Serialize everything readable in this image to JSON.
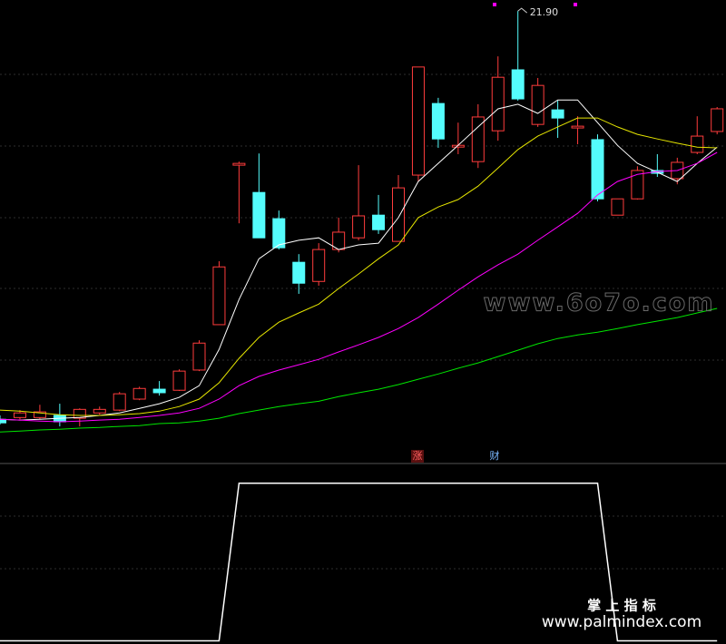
{
  "chart_data": [
    {
      "type": "candlestick",
      "ylim": [
        9.21,
        22.21
      ],
      "up_color": "#ff3c3c",
      "down_color": "#54fcfc",
      "open": [
        10.38,
        10.43,
        10.43,
        10.49,
        10.41,
        10.56,
        10.64,
        10.95,
        11.23,
        11.2,
        11.77,
        13.05,
        17.55,
        16.78,
        16.04,
        14.81,
        14.27,
        15.17,
        15.5,
        16.14,
        15.4,
        17.27,
        19.29,
        18.06,
        17.65,
        18.52,
        20.24,
        18.7,
        19.11,
        18.6,
        18.27,
        16.14,
        16.6,
        17.4,
        17.17,
        17.91,
        18.5
      ],
      "high": [
        10.49,
        10.64,
        10.79,
        10.82,
        10.69,
        10.74,
        11.15,
        11.3,
        11.46,
        11.79,
        12.61,
        14.84,
        17.65,
        17.88,
        16.27,
        15.04,
        15.35,
        16.07,
        17.55,
        16.71,
        17.27,
        20.32,
        19.45,
        18.75,
        19.27,
        20.62,
        21.9,
        20.01,
        19.37,
        18.93,
        18.42,
        16.6,
        17.52,
        17.86,
        17.76,
        18.93,
        19.19
      ],
      "low": [
        10.23,
        10.38,
        10.38,
        10.18,
        10.18,
        10.51,
        10.61,
        10.92,
        11.05,
        11.18,
        11.74,
        13.05,
        15.91,
        15.5,
        15.17,
        13.92,
        14.15,
        15.09,
        15.43,
        15.61,
        15.4,
        17.09,
        18.04,
        17.86,
        17.47,
        18.24,
        19.37,
        18.63,
        18.32,
        18.14,
        16.53,
        16.14,
        16.58,
        17.22,
        17.01,
        17.86,
        18.42
      ],
      "close": [
        10.28,
        10.56,
        10.59,
        10.31,
        10.66,
        10.66,
        11.1,
        11.25,
        11.13,
        11.74,
        12.53,
        14.68,
        17.6,
        15.5,
        15.22,
        14.22,
        15.17,
        15.66,
        16.12,
        15.73,
        16.91,
        20.32,
        18.29,
        18.11,
        18.91,
        20.03,
        19.42,
        19.8,
        18.88,
        18.65,
        16.6,
        16.6,
        17.4,
        17.32,
        17.63,
        18.37,
        19.14
      ],
      "series": [
        {
          "color": "#ffffff",
          "values": [
            10.38,
            10.36,
            10.38,
            10.41,
            10.43,
            10.49,
            10.56,
            10.69,
            10.82,
            11.0,
            11.33,
            12.35,
            13.76,
            14.91,
            15.3,
            15.43,
            15.5,
            15.17,
            15.3,
            15.35,
            16.07,
            17.09,
            17.6,
            18.11,
            18.63,
            19.14,
            19.27,
            19.01,
            19.39,
            19.39,
            18.75,
            18.11,
            17.6,
            17.35,
            17.09,
            17.6,
            18.06
          ]
        },
        {
          "color": "#e6e600",
          "values": [
            10.64,
            10.61,
            10.56,
            10.51,
            10.49,
            10.49,
            10.51,
            10.54,
            10.61,
            10.74,
            10.95,
            11.41,
            12.1,
            12.69,
            13.12,
            13.38,
            13.63,
            14.07,
            14.48,
            14.91,
            15.3,
            16.07,
            16.37,
            16.58,
            16.96,
            17.47,
            17.99,
            18.37,
            18.63,
            18.88,
            18.88,
            18.63,
            18.42,
            18.29,
            18.17,
            18.06,
            18.04
          ]
        },
        {
          "color": "#ff00ff",
          "values": [
            10.38,
            10.36,
            10.33,
            10.31,
            10.33,
            10.36,
            10.38,
            10.43,
            10.49,
            10.56,
            10.69,
            10.95,
            11.33,
            11.59,
            11.77,
            11.92,
            12.07,
            12.28,
            12.48,
            12.69,
            12.94,
            13.25,
            13.63,
            14.02,
            14.4,
            14.74,
            15.04,
            15.43,
            15.81,
            16.19,
            16.71,
            17.09,
            17.29,
            17.37,
            17.4,
            17.6,
            17.91
          ]
        },
        {
          "color": "#00e600",
          "values": [
            10.02,
            10.05,
            10.08,
            10.1,
            10.13,
            10.15,
            10.18,
            10.2,
            10.26,
            10.28,
            10.33,
            10.41,
            10.54,
            10.64,
            10.74,
            10.82,
            10.89,
            11.02,
            11.13,
            11.23,
            11.36,
            11.51,
            11.66,
            11.82,
            11.97,
            12.15,
            12.33,
            12.51,
            12.66,
            12.76,
            12.84,
            12.94,
            13.05,
            13.15,
            13.25,
            13.38,
            13.51
          ]
        }
      ],
      "annotations": [
        {
          "text": "21.90"
        },
        {
          "text": "涨"
        },
        {
          "text": "财"
        }
      ]
    },
    {
      "type": "line",
      "ylim": [
        -0.02,
        1.12
      ],
      "color": "#ffffff",
      "values": [
        0,
        0,
        0,
        0,
        0,
        0,
        0,
        0,
        0,
        0,
        0,
        0,
        1,
        1,
        1,
        1,
        1,
        1,
        1,
        1,
        1,
        1,
        1,
        1,
        1,
        1,
        1,
        1,
        1,
        1,
        1,
        0,
        0,
        0,
        0,
        0,
        0
      ]
    }
  ],
  "watermarks": [
    "www.6o7o.com",
    "掌 上 指 标",
    "www.palmindex.com"
  ]
}
